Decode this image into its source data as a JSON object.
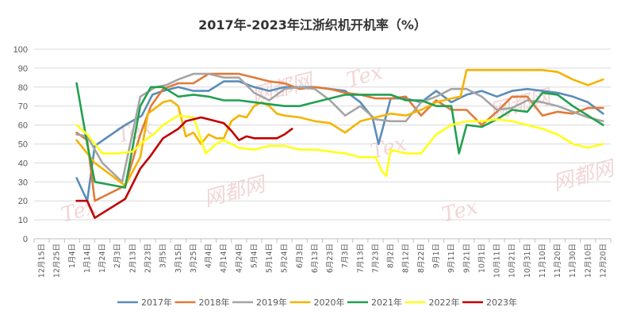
{
  "chart_data": {
    "type": "line",
    "title": "2017年-2023年江浙织机开机率（%）",
    "xlabel": "",
    "ylabel": "",
    "ylim": [
      0,
      100
    ],
    "yticks": [
      0,
      10,
      20,
      30,
      40,
      50,
      60,
      70,
      80,
      90,
      100
    ],
    "grid": true,
    "legend_position": "bottom",
    "categories": [
      "12月15日",
      "12月25日",
      "1月4日",
      "1月14日",
      "1月24日",
      "2月3日",
      "2月13日",
      "2月23日",
      "3月5日",
      "3月15日",
      "3月25日",
      "4月4日",
      "4月14日",
      "4月24日",
      "5月4日",
      "5月14日",
      "5月24日",
      "6月3日",
      "6月13日",
      "6月23日",
      "7月3日",
      "7月13日",
      "7月23日",
      "8月2日",
      "8月12日",
      "8月22日",
      "9月1日",
      "9月11日",
      "9月21日",
      "10月1日",
      "10月11日",
      "10月21日",
      "10月31日",
      "11月10日",
      "11月20日",
      "11月30日",
      "12月10日",
      "12月20日"
    ],
    "x_tick_labels": [
      "12月15日",
      "12月25日",
      "1月4日",
      "1月14日",
      "1月24日",
      "2月3日",
      "2月13日",
      "2月23日",
      "3月5日",
      "3月15日",
      "3月25日",
      "4月4日",
      "4月14日",
      "4月24日",
      "5月4日",
      "5月14日",
      "5月24日",
      "6月3日",
      "6月13日",
      "6月23日",
      "7月3日",
      "7月13日",
      "7月23日",
      "8月2日",
      "8月12日",
      "8月22日",
      "9月1日",
      "9月11日",
      "9月21日",
      "10月1日",
      "10月11日",
      "10月21日",
      "10月31日",
      "11月10日",
      "11月20日",
      "11月30日",
      "12月10日",
      "12月20日"
    ],
    "series": [
      {
        "name": "2017年",
        "color": "#5b8db8",
        "x": [
          2.3,
          3.0,
          3.5,
          5.5,
          6.6,
          7.3,
          8.0,
          9.0,
          10.0,
          11.0,
          12.0,
          13.0,
          14.0,
          15.0,
          16.0,
          17.0,
          18.0,
          19.0,
          20.0,
          21.0,
          21.8,
          22.2,
          23.0,
          24.0,
          25.0,
          26.0,
          27.0,
          28.0,
          29.0,
          30.0,
          31.0,
          32.0,
          33.0,
          34.0,
          35.0,
          36.0,
          37.0
        ],
        "values": [
          32,
          20,
          49,
          60,
          65,
          76,
          78,
          80,
          78,
          78,
          83,
          83,
          80,
          78,
          80,
          80,
          80,
          79,
          78,
          72,
          64,
          50,
          74,
          74,
          72,
          78,
          72,
          76,
          78,
          75,
          78,
          79,
          78,
          77,
          75,
          72,
          66
        ]
      },
      {
        "name": "2018年",
        "color": "#e07b39",
        "x": [
          2.3,
          3.0,
          3.5,
          5.5,
          6.5,
          7.2,
          8.0,
          9.0,
          10.0,
          11.0,
          12.0,
          13.0,
          14.0,
          15.0,
          16.0,
          17.0,
          18.0,
          19.0,
          20.0,
          21.0,
          22.0,
          23.0,
          24.0,
          25.0,
          26.0,
          27.0,
          28.0,
          29.0,
          30.0,
          31.0,
          32.0,
          33.0,
          34.0,
          35.0,
          36.0,
          37.0
        ],
        "values": [
          56,
          52,
          20,
          28,
          55,
          70,
          79,
          82,
          82,
          87,
          87,
          87,
          85,
          83,
          82,
          79,
          80,
          79,
          77,
          76,
          74,
          74,
          75,
          65,
          73,
          68,
          68,
          60,
          67,
          75,
          75,
          65,
          67,
          66,
          69,
          69
        ]
      },
      {
        "name": "2019年",
        "color": "#a5a5a5",
        "x": [
          2.3,
          3.0,
          4.0,
          5.3,
          6.5,
          7.5,
          8.2,
          9.0,
          10.0,
          11.0,
          12.0,
          13.0,
          14.0,
          15.0,
          16.0,
          17.0,
          18.0,
          19.0,
          20.0,
          21.0,
          22.0,
          23.0,
          24.0,
          25.0,
          26.0,
          27.0,
          28.0,
          29.0,
          30.0,
          31.0,
          32.0,
          33.0,
          34.0,
          35.0,
          36.0,
          37.0
        ],
        "values": [
          55,
          54,
          40,
          30,
          75,
          80,
          81,
          84,
          87,
          87,
          85,
          85,
          77,
          73,
          79,
          80,
          79,
          73,
          65,
          70,
          63,
          62,
          62,
          72,
          75,
          79,
          79,
          75,
          68,
          69,
          73,
          72,
          70,
          67,
          64,
          62
        ]
      },
      {
        "name": "2020年",
        "color": "#f5b400",
        "x": [
          2.3,
          3.0,
          3.5,
          5.5,
          6.5,
          7.0,
          8.0,
          8.5,
          9.0,
          9.5,
          10.0,
          10.5,
          11.0,
          11.5,
          12.0,
          12.5,
          13.0,
          13.5,
          14.0,
          14.5,
          15.0,
          15.5,
          16.0,
          17.0,
          18.0,
          19.0,
          20.0,
          21.0,
          22.0,
          23.0,
          24.0,
          25.0,
          26.0,
          27.0,
          27.6,
          28.0,
          29.0,
          30.0,
          31.0,
          32.0,
          33.0,
          34.0,
          35.0,
          36.0,
          37.0
        ],
        "values": [
          52,
          45,
          40,
          28,
          43,
          66,
          72,
          73,
          70,
          54,
          56,
          50,
          55,
          53,
          53,
          62,
          65,
          64,
          70,
          72,
          70,
          66,
          65,
          64,
          62,
          61,
          56,
          62,
          64,
          66,
          65,
          68,
          72,
          74,
          75,
          89,
          89,
          89,
          89,
          89,
          89,
          88,
          84,
          81,
          84
        ]
      },
      {
        "name": "2021年",
        "color": "#22a050",
        "x": [
          2.3,
          3.0,
          3.5,
          5.5,
          6.5,
          7.2,
          8.0,
          9.0,
          10.0,
          11.0,
          12.0,
          13.0,
          14.0,
          15.0,
          16.0,
          17.0,
          18.0,
          19.0,
          20.0,
          21.0,
          22.0,
          23.0,
          24.0,
          25.0,
          26.0,
          27.0,
          27.5,
          28.0,
          29.0,
          30.0,
          31.0,
          32.0,
          33.0,
          34.0,
          35.0,
          36.0,
          37.0
        ],
        "values": [
          82,
          50,
          30,
          27,
          70,
          80,
          80,
          75,
          76,
          75,
          73,
          73,
          72,
          71,
          70,
          70,
          72,
          74,
          76,
          76,
          76,
          76,
          73,
          73,
          70,
          70,
          45,
          60,
          59,
          63,
          68,
          67,
          77,
          76,
          70,
          65,
          60
        ]
      },
      {
        "name": "2022年",
        "color": "#ffff1a",
        "x": [
          2.3,
          3.0,
          4.0,
          5.0,
          6.0,
          6.5,
          7.0,
          7.5,
          8.0,
          9.0,
          10.0,
          10.4,
          10.8,
          11.5,
          12.0,
          13.0,
          14.0,
          15.0,
          16.0,
          17.0,
          18.0,
          19.0,
          20.0,
          21.0,
          22.0,
          22.4,
          22.7,
          23.0,
          24.0,
          25.0,
          26.0,
          27.0,
          28.0,
          29.0,
          30.0,
          31.0,
          32.0,
          33.0,
          34.0,
          35.0,
          36.0,
          37.0
        ],
        "values": [
          60,
          55,
          45,
          45,
          46,
          50,
          53,
          56,
          60,
          65,
          64,
          55,
          45,
          50,
          52,
          48,
          47,
          49,
          49,
          47,
          47,
          46,
          45,
          43,
          43,
          36,
          33,
          47,
          45,
          45,
          55,
          60,
          62,
          62,
          63,
          62,
          60,
          58,
          55,
          50,
          48,
          50
        ]
      },
      {
        "name": "2023年",
        "color": "#c00000",
        "x": [
          2.3,
          3.0,
          3.5,
          5.5,
          6.5,
          7.2,
          8.0,
          9.0,
          9.5,
          10.0,
          10.5,
          11.0,
          12.0,
          12.5,
          13.0,
          13.5,
          14.0,
          14.5,
          15.0,
          15.5,
          16.0,
          16.5
        ],
        "values": [
          20,
          20,
          11,
          21,
          37,
          44,
          53,
          58,
          62,
          63,
          64,
          63,
          61,
          57,
          52,
          54,
          53,
          53,
          53,
          53,
          55,
          58
        ]
      }
    ]
  },
  "watermark": {
    "text_logo": "网都网",
    "text_brand": "Tex"
  }
}
